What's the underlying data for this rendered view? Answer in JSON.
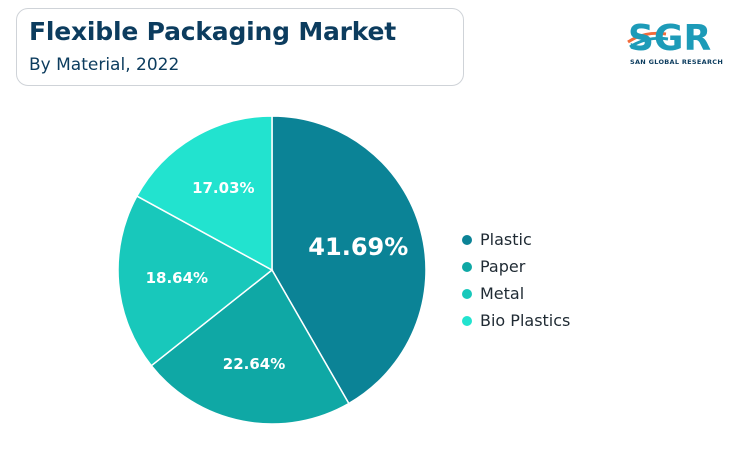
{
  "header": {
    "title": "Flexible Packaging Market",
    "subtitle": "By Material, 2022"
  },
  "logo": {
    "text": "SGR",
    "tagline": "SAN GLOBAL RESEARCH",
    "colors": [
      "#f26b3a",
      "#1d9bb8",
      "#0c3c5e"
    ]
  },
  "chart_data": {
    "type": "pie",
    "title": "Flexible Packaging Market",
    "subtitle": "By Material, 2022",
    "categories": [
      "Plastic",
      "Paper",
      "Metal",
      "Bio Plastics"
    ],
    "values": [
      41.69,
      22.64,
      18.64,
      17.03
    ],
    "labels": [
      "41.69%",
      "22.64%",
      "18.64%",
      "17.03%"
    ],
    "colors": [
      "#0b8396",
      "#0fa8a5",
      "#18c8bb",
      "#22e3cf"
    ],
    "start": "12 o'clock",
    "direction": "clockwise",
    "legend_position": "right"
  }
}
